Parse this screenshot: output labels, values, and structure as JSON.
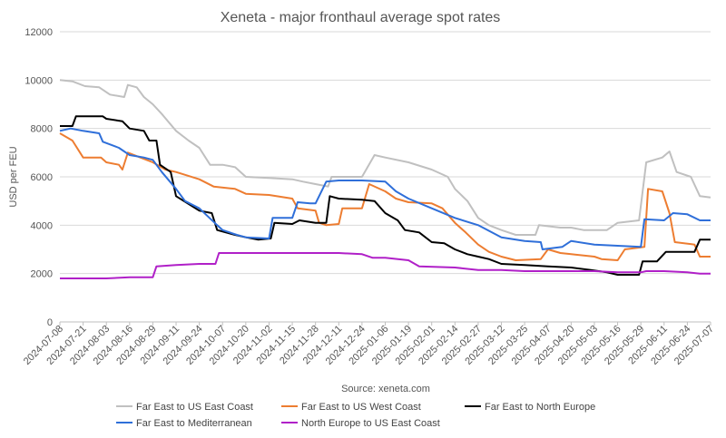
{
  "chart_data": {
    "type": "line",
    "title": "Xeneta - major fronthaul average spot rates",
    "xlabel": "",
    "ylabel": "USD per FEU",
    "source": "Source: xeneta.com",
    "ylim": [
      0,
      12000
    ],
    "yticks": [
      "0",
      "2000",
      "4000",
      "6000",
      "8000",
      "10000",
      "12000"
    ],
    "grid": true,
    "legend": "bottom",
    "x_start": "2024-07-08",
    "x_end": "2025-07-07",
    "x_tick_labels": [
      "2024-07-08",
      "2024-07-21",
      "2024-08-03",
      "2024-08-16",
      "2024-08-29",
      "2024-09-11",
      "2024-09-24",
      "2024-10-07",
      "2024-10-20",
      "2024-11-02",
      "2024-11-15",
      "2024-11-28",
      "2024-12-11",
      "2024-12-24",
      "2025-01-06",
      "2025-01-19",
      "2025-02-01",
      "2025-02-14",
      "2025-02-27",
      "2025-03-12",
      "2025-03-25",
      "2025-04-07",
      "2025-04-20",
      "2025-05-03",
      "2025-05-16",
      "2025-05-29",
      "2025-06-11",
      "2025-06-24",
      "2025-07-07"
    ],
    "series": [
      {
        "name": "Far East to US East Coast",
        "color": "#c0c0c0",
        "points": [
          [
            "2024-07-08",
            10000
          ],
          [
            "2024-07-15",
            9950
          ],
          [
            "2024-07-22",
            9750
          ],
          [
            "2024-07-30",
            9700
          ],
          [
            "2024-08-05",
            9400
          ],
          [
            "2024-08-13",
            9300
          ],
          [
            "2024-08-15",
            9800
          ],
          [
            "2024-08-20",
            9700
          ],
          [
            "2024-08-24",
            9300
          ],
          [
            "2024-08-29",
            9000
          ],
          [
            "2024-09-03",
            8600
          ],
          [
            "2024-09-11",
            7900
          ],
          [
            "2024-09-18",
            7500
          ],
          [
            "2024-09-24",
            7200
          ],
          [
            "2024-09-30",
            6500
          ],
          [
            "2024-10-07",
            6500
          ],
          [
            "2024-10-14",
            6400
          ],
          [
            "2024-10-20",
            6000
          ],
          [
            "2024-11-02",
            5950
          ],
          [
            "2024-11-15",
            5900
          ],
          [
            "2024-11-21",
            5800
          ],
          [
            "2024-11-28",
            5700
          ],
          [
            "2024-12-05",
            5600
          ],
          [
            "2024-12-07",
            6000
          ],
          [
            "2024-12-24",
            6000
          ],
          [
            "2024-12-31",
            6900
          ],
          [
            "2025-01-06",
            6800
          ],
          [
            "2025-01-19",
            6600
          ],
          [
            "2025-02-01",
            6300
          ],
          [
            "2025-02-10",
            6000
          ],
          [
            "2025-02-14",
            5500
          ],
          [
            "2025-02-21",
            5000
          ],
          [
            "2025-02-27",
            4300
          ],
          [
            "2025-03-05",
            4000
          ],
          [
            "2025-03-12",
            3800
          ],
          [
            "2025-03-20",
            3600
          ],
          [
            "2025-03-31",
            3600
          ],
          [
            "2025-04-02",
            4000
          ],
          [
            "2025-04-14",
            3900
          ],
          [
            "2025-04-20",
            3900
          ],
          [
            "2025-04-27",
            3800
          ],
          [
            "2025-05-10",
            3800
          ],
          [
            "2025-05-16",
            4100
          ],
          [
            "2025-05-28",
            4200
          ],
          [
            "2025-06-01",
            6600
          ],
          [
            "2025-06-10",
            6800
          ],
          [
            "2025-06-14",
            7050
          ],
          [
            "2025-06-18",
            6200
          ],
          [
            "2025-06-26",
            6000
          ],
          [
            "2025-07-01",
            5200
          ],
          [
            "2025-07-07",
            5150
          ]
        ]
      },
      {
        "name": "Far East to US West Coast",
        "color": "#ed7d31",
        "points": [
          [
            "2024-07-08",
            7800
          ],
          [
            "2024-07-15",
            7500
          ],
          [
            "2024-07-21",
            6800
          ],
          [
            "2024-07-31",
            6800
          ],
          [
            "2024-08-03",
            6600
          ],
          [
            "2024-08-10",
            6500
          ],
          [
            "2024-08-12",
            6300
          ],
          [
            "2024-08-15",
            7000
          ],
          [
            "2024-08-22",
            6800
          ],
          [
            "2024-08-29",
            6600
          ],
          [
            "2024-09-05",
            6300
          ],
          [
            "2024-09-11",
            6200
          ],
          [
            "2024-09-24",
            5900
          ],
          [
            "2024-10-02",
            5600
          ],
          [
            "2024-10-14",
            5500
          ],
          [
            "2024-10-20",
            5300
          ],
          [
            "2024-11-02",
            5250
          ],
          [
            "2024-11-15",
            5100
          ],
          [
            "2024-11-18",
            4700
          ],
          [
            "2024-11-28",
            4600
          ],
          [
            "2024-11-30",
            4100
          ],
          [
            "2024-12-04",
            4000
          ],
          [
            "2024-12-11",
            4050
          ],
          [
            "2024-12-13",
            4700
          ],
          [
            "2024-12-24",
            4700
          ],
          [
            "2024-12-28",
            5700
          ],
          [
            "2025-01-06",
            5400
          ],
          [
            "2025-01-12",
            5100
          ],
          [
            "2025-01-19",
            4950
          ],
          [
            "2025-02-01",
            4900
          ],
          [
            "2025-02-07",
            4700
          ],
          [
            "2025-02-14",
            4100
          ],
          [
            "2025-02-20",
            3700
          ],
          [
            "2025-02-27",
            3200
          ],
          [
            "2025-03-05",
            2900
          ],
          [
            "2025-03-12",
            2700
          ],
          [
            "2025-03-20",
            2550
          ],
          [
            "2025-04-03",
            2600
          ],
          [
            "2025-04-07",
            3000
          ],
          [
            "2025-04-14",
            2850
          ],
          [
            "2025-04-20",
            2800
          ],
          [
            "2025-05-03",
            2700
          ],
          [
            "2025-05-07",
            2600
          ],
          [
            "2025-05-16",
            2550
          ],
          [
            "2025-05-20",
            3000
          ],
          [
            "2025-05-31",
            3100
          ],
          [
            "2025-06-02",
            5500
          ],
          [
            "2025-06-10",
            5400
          ],
          [
            "2025-06-14",
            4500
          ],
          [
            "2025-06-17",
            3300
          ],
          [
            "2025-06-28",
            3200
          ],
          [
            "2025-07-01",
            2700
          ],
          [
            "2025-07-07",
            2700
          ]
        ]
      },
      {
        "name": "Far East to North Europe",
        "color": "#000000",
        "points": [
          [
            "2024-07-08",
            8100
          ],
          [
            "2024-07-15",
            8100
          ],
          [
            "2024-07-17",
            8500
          ],
          [
            "2024-08-01",
            8500
          ],
          [
            "2024-08-03",
            8400
          ],
          [
            "2024-08-12",
            8300
          ],
          [
            "2024-08-16",
            8000
          ],
          [
            "2024-08-24",
            7900
          ],
          [
            "2024-08-27",
            7500
          ],
          [
            "2024-08-31",
            7500
          ],
          [
            "2024-09-02",
            6500
          ],
          [
            "2024-09-08",
            6200
          ],
          [
            "2024-09-11",
            5200
          ],
          [
            "2024-09-24",
            4600
          ],
          [
            "2024-10-01",
            4500
          ],
          [
            "2024-10-04",
            3800
          ],
          [
            "2024-10-14",
            3600
          ],
          [
            "2024-10-20",
            3500
          ],
          [
            "2024-10-27",
            3400
          ],
          [
            "2024-11-03",
            3450
          ],
          [
            "2024-11-05",
            4100
          ],
          [
            "2024-11-15",
            4050
          ],
          [
            "2024-11-19",
            4200
          ],
          [
            "2024-11-28",
            4100
          ],
          [
            "2024-12-04",
            4100
          ],
          [
            "2024-12-06",
            5200
          ],
          [
            "2024-12-11",
            5100
          ],
          [
            "2024-12-24",
            5050
          ],
          [
            "2024-12-31",
            5000
          ],
          [
            "2025-01-06",
            4500
          ],
          [
            "2025-01-13",
            4200
          ],
          [
            "2025-01-17",
            3800
          ],
          [
            "2025-01-25",
            3700
          ],
          [
            "2025-02-01",
            3300
          ],
          [
            "2025-02-08",
            3250
          ],
          [
            "2025-02-14",
            3000
          ],
          [
            "2025-02-21",
            2800
          ],
          [
            "2025-02-27",
            2700
          ],
          [
            "2025-03-05",
            2600
          ],
          [
            "2025-03-12",
            2400
          ],
          [
            "2025-03-25",
            2350
          ],
          [
            "2025-04-07",
            2300
          ],
          [
            "2025-04-20",
            2250
          ],
          [
            "2025-05-01",
            2150
          ],
          [
            "2025-05-10",
            2050
          ],
          [
            "2025-05-16",
            1950
          ],
          [
            "2025-05-28",
            1950
          ],
          [
            "2025-05-30",
            2500
          ],
          [
            "2025-06-07",
            2500
          ],
          [
            "2025-06-12",
            2900
          ],
          [
            "2025-06-28",
            2900
          ],
          [
            "2025-07-01",
            3400
          ],
          [
            "2025-07-07",
            3400
          ]
        ]
      },
      {
        "name": "Far East to Mediterranean",
        "color": "#2f6fd9",
        "points": [
          [
            "2024-07-08",
            7900
          ],
          [
            "2024-07-14",
            8000
          ],
          [
            "2024-07-21",
            7900
          ],
          [
            "2024-07-30",
            7800
          ],
          [
            "2024-08-01",
            7450
          ],
          [
            "2024-08-10",
            7200
          ],
          [
            "2024-08-16",
            6900
          ],
          [
            "2024-08-24",
            6800
          ],
          [
            "2024-08-29",
            6700
          ],
          [
            "2024-09-03",
            6200
          ],
          [
            "2024-09-11",
            5500
          ],
          [
            "2024-09-16",
            5000
          ],
          [
            "2024-09-24",
            4700
          ],
          [
            "2024-10-04",
            4000
          ],
          [
            "2024-10-07",
            3800
          ],
          [
            "2024-10-15",
            3600
          ],
          [
            "2024-10-20",
            3500
          ],
          [
            "2024-11-02",
            3450
          ],
          [
            "2024-11-04",
            4300
          ],
          [
            "2024-11-15",
            4300
          ],
          [
            "2024-11-18",
            4950
          ],
          [
            "2024-11-25",
            4900
          ],
          [
            "2024-11-28",
            4900
          ],
          [
            "2024-12-04",
            5800
          ],
          [
            "2024-12-11",
            5850
          ],
          [
            "2024-12-24",
            5850
          ],
          [
            "2025-01-06",
            5800
          ],
          [
            "2025-01-12",
            5400
          ],
          [
            "2025-01-19",
            5100
          ],
          [
            "2025-02-01",
            4700
          ],
          [
            "2025-02-14",
            4300
          ],
          [
            "2025-02-27",
            4000
          ],
          [
            "2025-03-12",
            3500
          ],
          [
            "2025-03-25",
            3350
          ],
          [
            "2025-04-03",
            3300
          ],
          [
            "2025-04-04",
            3000
          ],
          [
            "2025-04-15",
            3100
          ],
          [
            "2025-04-20",
            3350
          ],
          [
            "2025-05-03",
            3200
          ],
          [
            "2025-05-16",
            3150
          ],
          [
            "2025-05-29",
            3100
          ],
          [
            "2025-05-31",
            4250
          ],
          [
            "2025-06-11",
            4200
          ],
          [
            "2025-06-16",
            4500
          ],
          [
            "2025-06-24",
            4450
          ],
          [
            "2025-07-01",
            4200
          ],
          [
            "2025-07-07",
            4200
          ]
        ]
      },
      {
        "name": "North Europe to US East Coast",
        "color": "#b020c8",
        "points": [
          [
            "2024-07-08",
            1800
          ],
          [
            "2024-07-21",
            1800
          ],
          [
            "2024-08-03",
            1800
          ],
          [
            "2024-08-16",
            1850
          ],
          [
            "2024-08-29",
            1850
          ],
          [
            "2024-08-31",
            2300
          ],
          [
            "2024-09-11",
            2350
          ],
          [
            "2024-09-24",
            2400
          ],
          [
            "2024-10-03",
            2400
          ],
          [
            "2024-10-05",
            2850
          ],
          [
            "2024-10-20",
            2850
          ],
          [
            "2024-11-02",
            2850
          ],
          [
            "2024-11-15",
            2850
          ],
          [
            "2024-11-28",
            2850
          ],
          [
            "2024-12-11",
            2850
          ],
          [
            "2024-12-24",
            2800
          ],
          [
            "2024-12-30",
            2650
          ],
          [
            "2025-01-06",
            2650
          ],
          [
            "2025-01-19",
            2550
          ],
          [
            "2025-01-25",
            2300
          ],
          [
            "2025-02-14",
            2250
          ],
          [
            "2025-02-27",
            2150
          ],
          [
            "2025-03-12",
            2150
          ],
          [
            "2025-03-25",
            2100
          ],
          [
            "2025-04-07",
            2100
          ],
          [
            "2025-04-20",
            2100
          ],
          [
            "2025-05-03",
            2100
          ],
          [
            "2025-05-16",
            2050
          ],
          [
            "2025-05-29",
            2050
          ],
          [
            "2025-06-01",
            2100
          ],
          [
            "2025-06-11",
            2100
          ],
          [
            "2025-06-24",
            2050
          ],
          [
            "2025-07-01",
            2000
          ],
          [
            "2025-07-07",
            2000
          ]
        ]
      }
    ]
  }
}
